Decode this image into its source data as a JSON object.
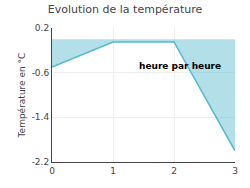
{
  "chart_data": {
    "type": "area",
    "title": "Evolution de la température",
    "ylabel": "Température en °C",
    "annotation": "heure par heure",
    "x": [
      0,
      1,
      2,
      3
    ],
    "values": [
      -0.5,
      -0.05,
      -0.05,
      -2.0
    ],
    "color": "#55b8cc",
    "xlim": [
      0,
      3
    ],
    "ylim": [
      -2.2,
      0.2
    ],
    "xticks": [
      0,
      1,
      2,
      3
    ],
    "yticks": [
      0.2,
      -0.6,
      -1.4,
      -2.2
    ],
    "grid": true
  }
}
